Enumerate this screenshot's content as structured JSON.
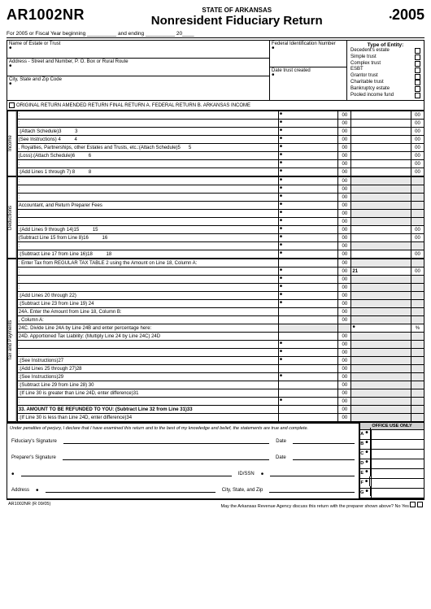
{
  "form_code": "AR1002NR",
  "state": "STATE OF ARKANSAS",
  "title": "Nonresident Fiduciary Return",
  "year": "2005",
  "fiscal_text": "For 2005 or Fiscal Year beginning __________ and ending __________ 20____",
  "fields": {
    "name": "Name of Estate or Trust",
    "address": "Address - Street and Number, P. O. Box or Rural Route",
    "city": "City, State and Zip Code",
    "fein": "Federal Identification Number",
    "date_created": "Date trust created"
  },
  "entity": {
    "title": "Type of Entity:",
    "types": [
      "Decedent's estate",
      "Simple trust",
      "Complex trust",
      "ESBT",
      "Grantor trust",
      "Charitable trust",
      "Bankruptcy estate",
      "Pooled income fund"
    ]
  },
  "return_types": "ORIGINAL RETURN AMENDED RETURN FINAL RETURN A. FEDERAL RETURN B. ARKANSAS INCOME",
  "sections": {
    "income": "Income",
    "deductions": "Deductions",
    "tax": "Tax and Payments"
  },
  "lines": {
    "l1": ":",
    "l2": ":",
    "l3": ":(Attach Schedule)3",
    "l4": "(See Instructions) 4",
    "l5": ", Royalties, Partnerships, other Estates and Trusts, etc.:(Attach Schedule)5",
    "l6": "(Loss):(Attach Schedule)6",
    "l7": ":",
    "l8": ":(Add Lines 1 through 7) 8",
    "l9_14": "Accountant, and Return Preparer Fees",
    "l15": ":(Add Lines 9 through 14)15",
    "l16": "(Subtract Line 15 from Line 8)16",
    "l17": ":",
    "l18": ":(Subtract Line 17 from Line 16)18",
    "l19": ": Enter Tax from REGULAR TAX TABLE 2 using the Amount on Line 18, Column A:",
    "l20_22": ":",
    "l22b": ":(Add Lines 20 through 22)",
    "l24": ":(Subtract Line 23 from Line 19) 24",
    "l24a": "24A. Enter the Amount from Line 18, Column B:",
    "l24a2": ", Column A:",
    "l24c": "24C. Divide Line 24A by Line 24B and enter percentage here:",
    "l24d": "24D. Apportioned Tax Liability: (Multiply Line 24 by Line 24C) 24D",
    "l25_26": ":",
    "l27": ":(See Instructions)27",
    "l28": ":(Add Lines 25 through 27)28",
    "l29": ":(See Instructions)29",
    "l30": ":(Subtract Line 29 from Line 28) 30",
    "l31": ":(If Line 30 is greater than Line 24D, enter difference)31",
    "l32": ":",
    "l33": "33.    AMOUNT TO BE REFUNDED TO YOU: (Subtract Line 32 from Line 31)33",
    "l34": ":(If Line 30 is less than Line 24D, enter difference)34"
  },
  "sig": {
    "perjury": "Under penalties of perjury, I declare that I have examined this return and to the best of my knowledge and belief, the statements are true and complete.",
    "fiduciary": "Fiduciary's Signature",
    "preparer": "Preparer's Signature",
    "date": "Date",
    "idssn": "ID/SSN",
    "address": "Address",
    "csz": "City, State, and Zip"
  },
  "office": {
    "title": "OFFICE USE ONLY",
    "rows": [
      "A",
      "B",
      "C",
      "D",
      "E",
      "F",
      "G"
    ]
  },
  "footer": {
    "rev": "AR1002NR (R 09/05)",
    "discuss": "May the Arkansas Revenue Agency discuss this return with the preparer shown above? No Yes"
  }
}
